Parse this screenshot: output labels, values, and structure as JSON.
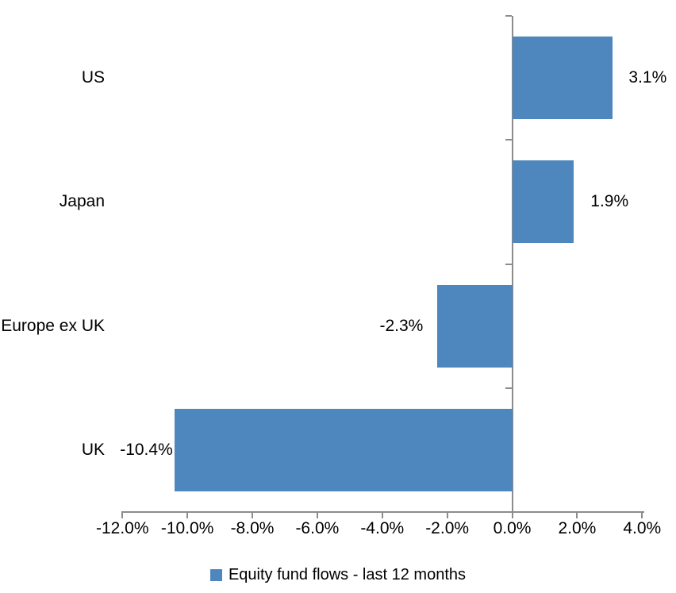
{
  "chart_data": {
    "type": "bar",
    "orientation": "horizontal",
    "title": "",
    "legend": "Equity fund flows - last 12 months",
    "legend_position": "bottom-center",
    "categories": [
      "US",
      "Japan",
      "Europe ex UK",
      "UK"
    ],
    "values": [
      3.1,
      1.9,
      -2.3,
      -10.4
    ],
    "data_labels": [
      "3.1%",
      "1.9%",
      "-2.3%",
      "-10.4%"
    ],
    "x_axis": {
      "min": -12,
      "max": 4,
      "tick_step": 2,
      "tick_values": [
        -12,
        -10,
        -8,
        -6,
        -4,
        -2,
        0,
        2,
        4
      ],
      "tick_labels": [
        "-12.0%",
        "-10.0%",
        "-8.0%",
        "-6.0%",
        "-4.0%",
        "-2.0%",
        "0.0%",
        "2.0%",
        "4.0%"
      ]
    },
    "grid": false,
    "colors": {
      "bar": "#4E87BD",
      "axis": "#8C8C8C",
      "text": "#000000",
      "background": "#FFFFFF"
    },
    "data_label_gaps": [
      20,
      21,
      18,
      2
    ]
  }
}
